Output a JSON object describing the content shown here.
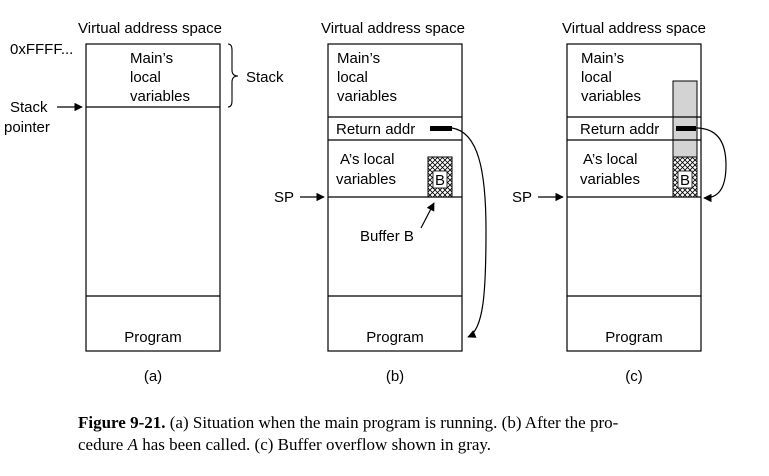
{
  "panels": [
    {
      "id": "a",
      "header": "Virtual address space",
      "main_locals": [
        "Main’s",
        "local",
        "variables"
      ],
      "program": "Program",
      "tag": "(a)",
      "addr_label": "0xFFFF...",
      "stack_label": "Stack",
      "stack_pointer": [
        "Stack",
        "pointer"
      ]
    },
    {
      "id": "b",
      "header": "Virtual address space",
      "main_locals": [
        "Main’s",
        "local",
        "variables"
      ],
      "return_addr": "Return addr",
      "a_locals": [
        "A’s local",
        "variables"
      ],
      "buffer_letter": "B",
      "sp": "SP",
      "buffer_label": "Buffer B",
      "program": "Program",
      "tag": "(b)"
    },
    {
      "id": "c",
      "header": "Virtual address space",
      "main_locals": [
        "Main’s",
        "local",
        "variables"
      ],
      "return_addr": "Return addr",
      "a_locals": [
        "A’s local",
        "variables"
      ],
      "buffer_letter": "B",
      "sp": "SP",
      "program": "Program",
      "tag": "(c)"
    }
  ],
  "caption": {
    "figure": "Figure 9-21.",
    "text_1": " (a) Situation when the main program is running. (b) After the pro-",
    "text_2_pre": "cedure ",
    "text_2_italic": "A",
    "text_2_post": " has been called. (c) Buffer overflow shown in gray."
  },
  "colors": {
    "overflow_gray": "#d3d3d3",
    "line": "#000000"
  }
}
